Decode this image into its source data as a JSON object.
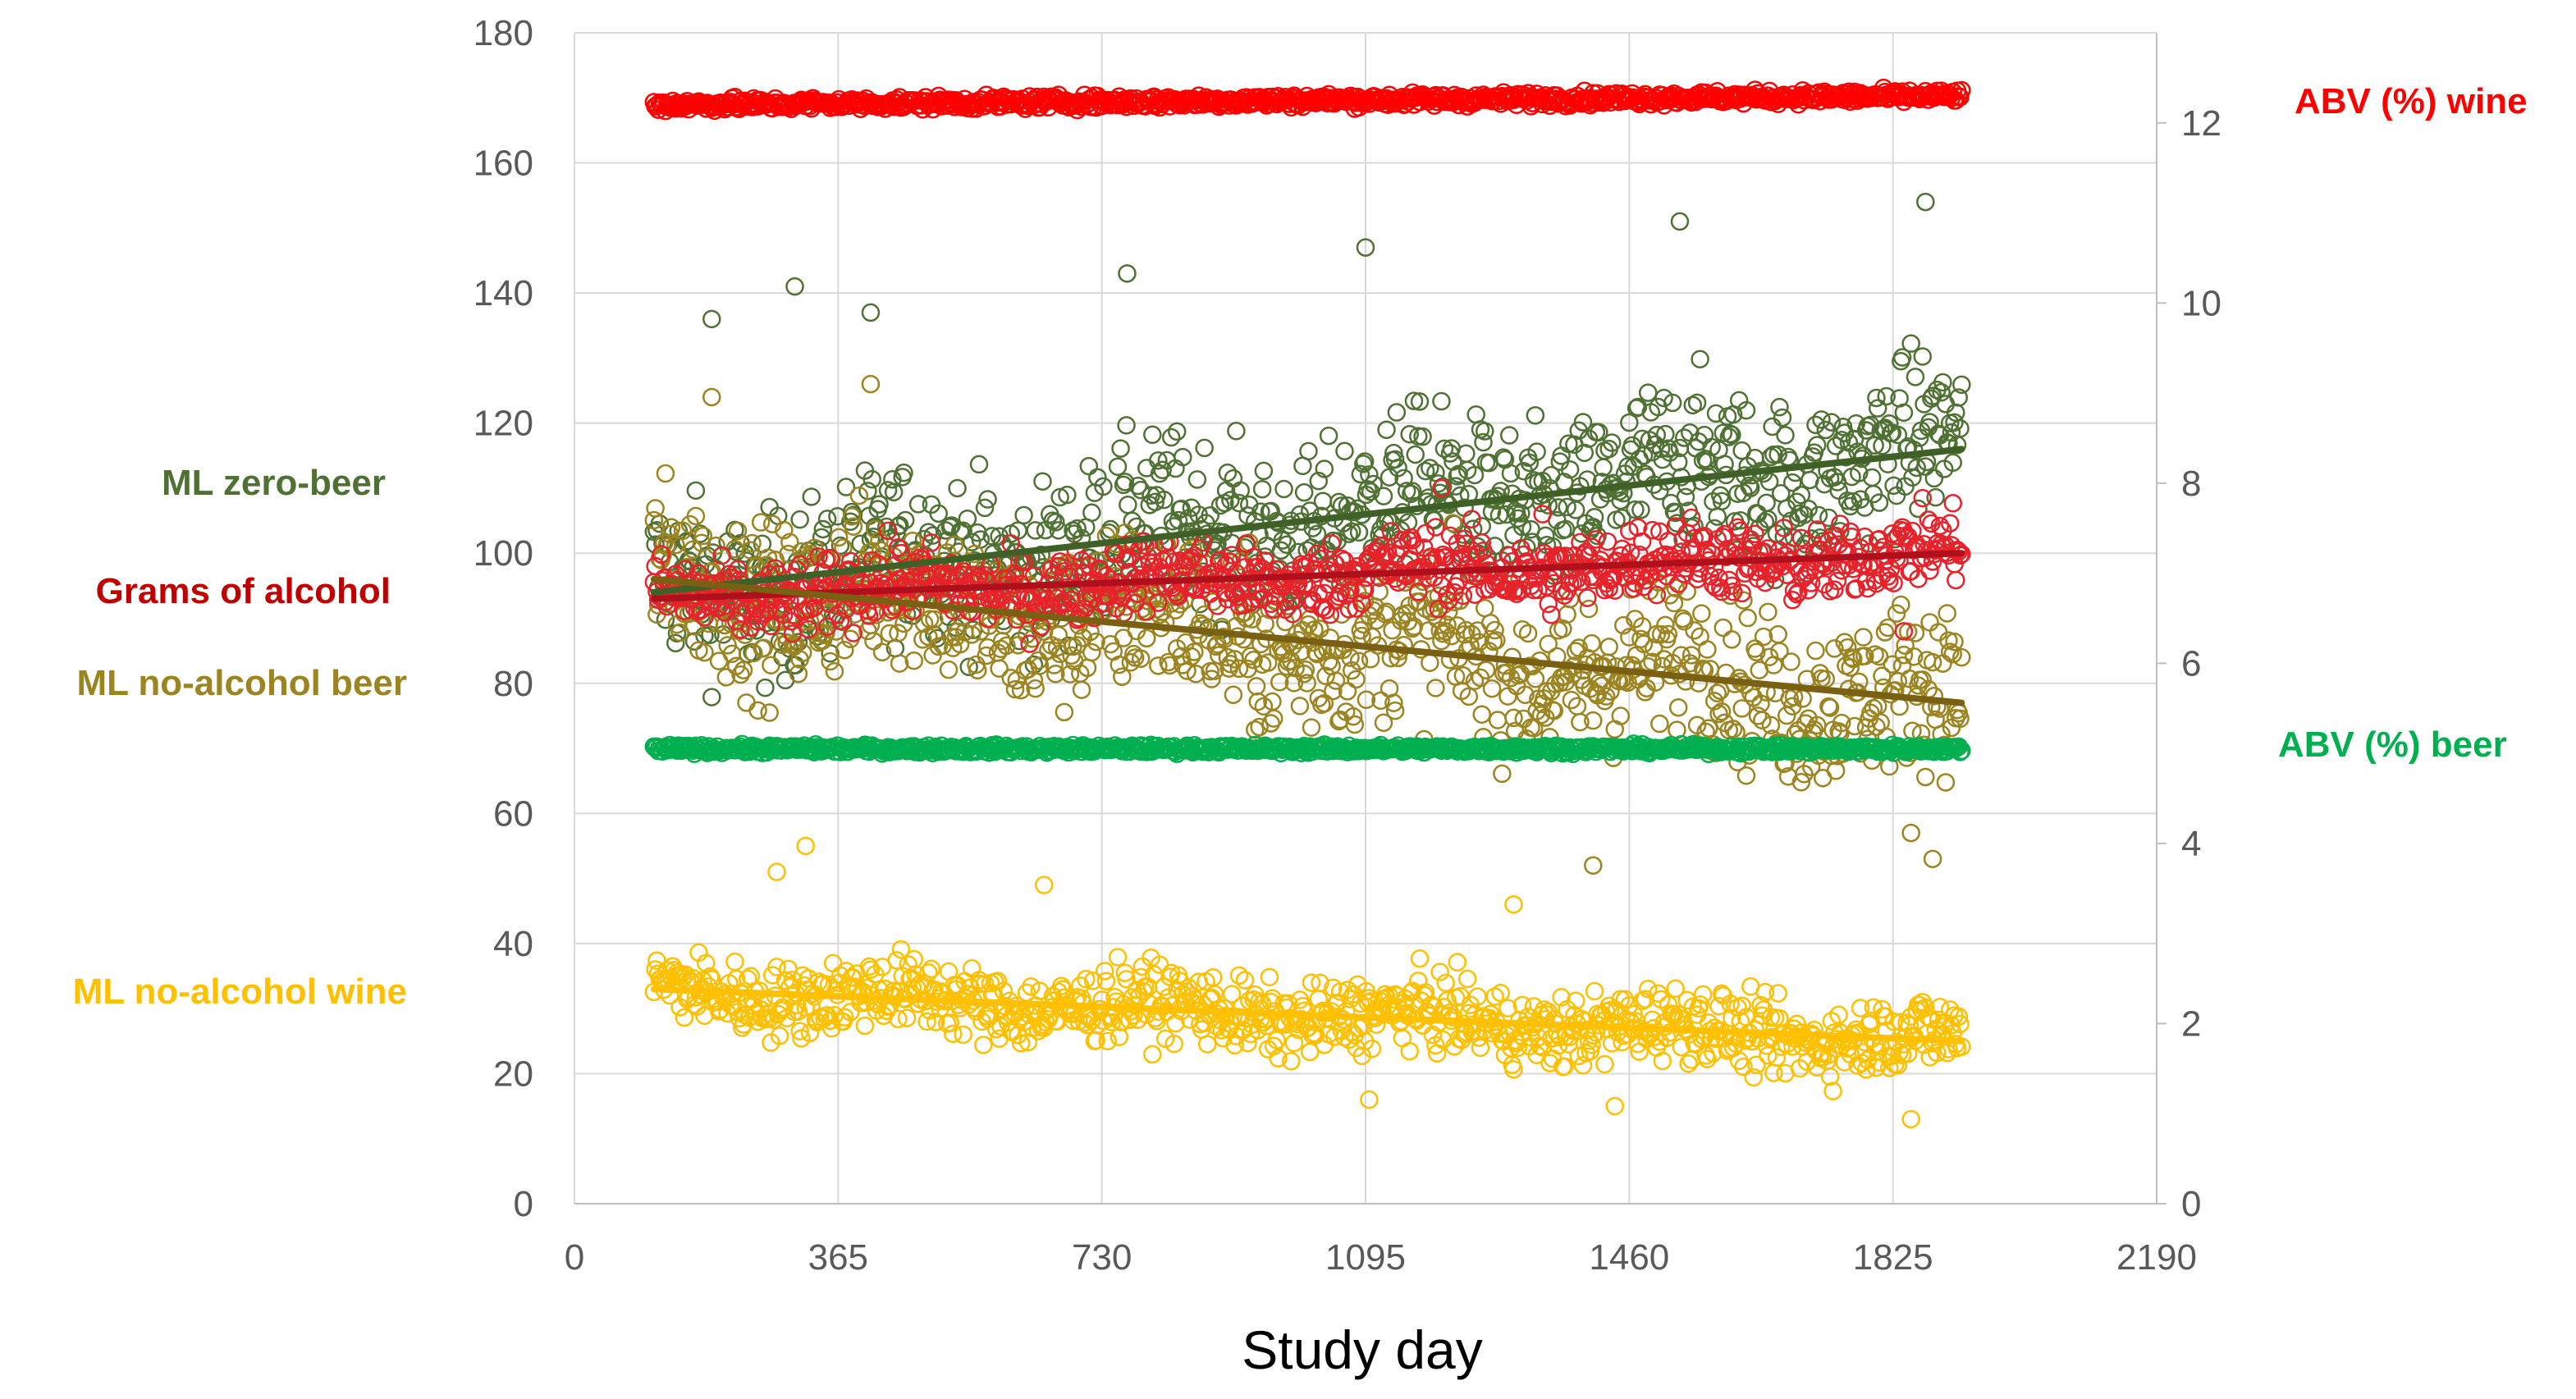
{
  "chart_data": {
    "type": "scatter",
    "title": "",
    "xlabel": "Study day",
    "ylabel": "",
    "xlim": [
      0,
      2190
    ],
    "ylim": [
      0,
      180
    ],
    "y2lim": [
      0,
      13
    ],
    "x_ticks": [
      "0",
      "365",
      "730",
      "1095",
      "1460",
      "1825",
      "2190"
    ],
    "y_ticks": [
      "0",
      "20",
      "40",
      "60",
      "80",
      "100",
      "120",
      "140",
      "160",
      "180"
    ],
    "y2_ticks": [
      "0",
      "2",
      "4",
      "6",
      "8",
      "10",
      "12"
    ],
    "grid": true,
    "x_range_observed": [
      110,
      1920
    ],
    "series": [
      {
        "name": "ML zero-beer",
        "axis": "left",
        "color": "#4f7133",
        "trend_color": "#3f6127",
        "trend": [
          [
            110,
            94
          ],
          [
            1920,
            116
          ]
        ],
        "spread": 9,
        "outliers": [
          [
            190,
            136
          ],
          [
            1095,
            147
          ],
          [
            1530,
            151
          ],
          [
            1870,
            154
          ],
          [
            305,
            141
          ],
          [
            765,
            143
          ],
          [
            410,
            137
          ]
        ]
      },
      {
        "name": "Grams of alcohol",
        "axis": "left",
        "color": "#e8222a",
        "trend_color": "#b0101c",
        "trend": [
          [
            110,
            93
          ],
          [
            1920,
            100
          ]
        ],
        "spread": 4,
        "outliers": [
          [
            1200,
            110
          ],
          [
            1340,
            106
          ],
          [
            1840,
            88
          ]
        ]
      },
      {
        "name": "ML no-alcohol beer",
        "axis": "left",
        "color": "#9c8420",
        "trend_color": "#7a6012",
        "trend": [
          [
            110,
            96
          ],
          [
            1920,
            77
          ]
        ],
        "spread": 9,
        "outliers": [
          [
            190,
            124
          ],
          [
            410,
            126
          ],
          [
            1850,
            57
          ],
          [
            1410,
            52
          ],
          [
            1880,
            53
          ]
        ]
      },
      {
        "name": "ML no-alcohol wine",
        "axis": "left",
        "color": "#ffc000",
        "trend_color": "#ffc000",
        "trend": [
          [
            110,
            33
          ],
          [
            1920,
            25
          ]
        ],
        "spread": 4,
        "outliers": [
          [
            280,
            51
          ],
          [
            320,
            55
          ],
          [
            650,
            49
          ],
          [
            1300,
            46
          ],
          [
            1440,
            15
          ],
          [
            1850,
            13
          ],
          [
            1100,
            16
          ]
        ]
      },
      {
        "name": "ABV (%) wine",
        "axis": "right",
        "color": "#ff0000",
        "trend_color": null,
        "trend": [
          [
            110,
            12.2
          ],
          [
            1920,
            12.3
          ]
        ],
        "spread": 0.05,
        "outliers": []
      },
      {
        "name": "ABV (%) beer",
        "axis": "right",
        "color": "#00b050",
        "trend_color": null,
        "trend": [
          [
            110,
            5.05
          ],
          [
            1920,
            5.05
          ]
        ],
        "spread": 0.03,
        "outliers": []
      }
    ],
    "labels": {
      "zero_beer": "ML zero-beer",
      "grams_alcohol": "Grams of alcohol",
      "no_alc_beer": "ML no-alcohol beer",
      "no_alc_wine": "ML no-alcohol wine",
      "abv_wine": "ABV (%) wine",
      "abv_beer": "ABV (%) beer"
    }
  }
}
